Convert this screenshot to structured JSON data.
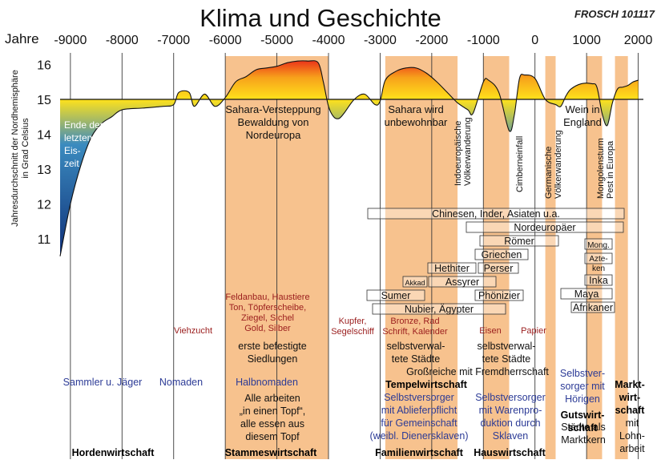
{
  "title": "Klima und Geschichte",
  "signature": "FROSCH 101117",
  "x_axis": {
    "label": "Jahre",
    "ticks": [
      "-9000",
      "-8000",
      "-7000",
      "-6000",
      "-5000",
      "-4000",
      "-3000",
      "-2000",
      "-1000",
      "0",
      "1000",
      "2000"
    ]
  },
  "y_axis": {
    "label_line1": "Jahresdurchschnitt der Nordhemisphäre",
    "label_line2": "in Grad Celsius",
    "ticks": [
      "16",
      "15",
      "14",
      "13",
      "12",
      "11"
    ]
  },
  "colors": {
    "warm_top": "#e8161a",
    "warm_mid": "#f7a21b",
    "warm_low": "#ffe21b",
    "cold_top": "#ffe21b",
    "cold_mid": "#3b8bbf",
    "cold_low": "#0d2c76",
    "period_band": "#f7c28e",
    "brown_text": "#9a1d1d",
    "blue_text": "#2c3b96",
    "gridline": "#3a3a3a"
  },
  "chart_data": {
    "type": "area",
    "xlabel": "Jahre",
    "ylabel": "Jahresdurchschnitt der Nordhemisphäre in Grad Celsius",
    "baseline": 15,
    "xlim": [
      -9200,
      2100
    ],
    "ylim": [
      10,
      16.3
    ],
    "x": [
      -9200,
      -9000,
      -8800,
      -8600,
      -8400,
      -8200,
      -8000,
      -7600,
      -7200,
      -7000,
      -6900,
      -6700,
      -6600,
      -6400,
      -6200,
      -6000,
      -5800,
      -5600,
      -5400,
      -5200,
      -5000,
      -4800,
      -4600,
      -4400,
      -4200,
      -4100,
      -4000,
      -3900,
      -3800,
      -3700,
      -3500,
      -3300,
      -3100,
      -3000,
      -2900,
      -2700,
      -2500,
      -2300,
      -2100,
      -1900,
      -1700,
      -1500,
      -1300,
      -1200,
      -1000,
      -900,
      -700,
      -500,
      -400,
      -300,
      -200,
      0,
      200,
      400,
      500,
      600,
      700,
      900,
      1100,
      1200,
      1300,
      1400,
      1500,
      1600,
      1700,
      1800,
      1900,
      2000
    ],
    "y": [
      10.5,
      12.0,
      13.1,
      13.9,
      14.3,
      14.5,
      14.7,
      14.75,
      14.8,
      14.85,
      15.2,
      15.2,
      14.8,
      15.15,
      14.8,
      15.05,
      15.5,
      15.65,
      15.85,
      15.9,
      15.95,
      16.05,
      16.1,
      16.1,
      16.05,
      15.5,
      14.8,
      14.5,
      14.45,
      14.6,
      15.0,
      15.15,
      14.85,
      14.95,
      15.55,
      15.8,
      15.9,
      15.9,
      15.75,
      15.5,
      15.2,
      14.9,
      14.7,
      14.6,
      15.5,
      15.55,
      15.2,
      14.1,
      14.55,
      15.6,
      15.7,
      15.6,
      15.0,
      14.85,
      14.8,
      15.1,
      15.3,
      15.45,
      15.45,
      15.35,
      14.6,
      14.25,
      14.9,
      15.3,
      15.35,
      15.4,
      15.5,
      15.55
    ]
  },
  "climate_labels": [
    {
      "id": "ende-eiszeit",
      "lines": [
        "Ende der",
        "letzten",
        "Eis-",
        "zeit"
      ]
    },
    {
      "id": "sahara-versteppung",
      "lines": [
        "Sahara-Versteppung",
        "Bewaldung von",
        "Nordeuropa"
      ]
    },
    {
      "id": "sahara-unbewohnbar",
      "lines": [
        "Sahara wird",
        "unbewohnbar"
      ]
    },
    {
      "id": "wein-england",
      "lines": [
        "Wein in",
        "England"
      ]
    }
  ],
  "vertical_events": [
    {
      "id": "indoeuropaeische",
      "lines": [
        "Indoeuropäische",
        "Völkerwanderung"
      ]
    },
    {
      "id": "cimberneinfall",
      "lines": [
        "Cimberneinfall"
      ]
    },
    {
      "id": "germanische",
      "lines": [
        "Germanische",
        "Völkerwanderung"
      ]
    },
    {
      "id": "mongolensturm",
      "lines": [
        "Mongolensturm",
        "Pest in Europa"
      ]
    }
  ],
  "peoples": [
    {
      "id": "chinesen",
      "label": "Chinesen, Inder, Asiaten u.a."
    },
    {
      "id": "nordeuropaer",
      "label": "Nordeuropäer"
    },
    {
      "id": "roemer",
      "label": "Römer"
    },
    {
      "id": "griechen",
      "label": "Griechen"
    },
    {
      "id": "perser",
      "label": "Perser"
    },
    {
      "id": "hethiter",
      "label": "Hethiter"
    },
    {
      "id": "akkad",
      "label": "Akkad"
    },
    {
      "id": "assyrer",
      "label": "Assyrer"
    },
    {
      "id": "sumer",
      "label": "Sumer"
    },
    {
      "id": "phoenizier",
      "label": "Phönizier"
    },
    {
      "id": "nubier",
      "label": "Nubier, Ägypter"
    },
    {
      "id": "mongolen",
      "label": "Mong."
    },
    {
      "id": "azteken",
      "label": "Azte-ken"
    },
    {
      "id": "inka",
      "label": "Inka"
    },
    {
      "id": "maya",
      "label": "Maya"
    },
    {
      "id": "afrikaner",
      "label": "Afrikaner"
    }
  ],
  "technology": [
    {
      "id": "viehzucht",
      "lines": [
        "Viehzucht"
      ]
    },
    {
      "id": "feldanbau",
      "lines": [
        "Feldanbau, Haustiere",
        "Ton, Töpferscheibe,",
        "Ziegel, Sichel",
        "Gold, Silber"
      ]
    },
    {
      "id": "kupfer",
      "lines": [
        "Kupfer,",
        "Segelschiff"
      ]
    },
    {
      "id": "bronze",
      "lines": [
        "Bronze, Rad",
        "Schrift, Kalender"
      ]
    },
    {
      "id": "eisen",
      "lines": [
        "Eisen"
      ]
    },
    {
      "id": "papier",
      "lines": [
        "Papier"
      ]
    }
  ],
  "settlement": [
    {
      "id": "befestigte-siedlungen",
      "lines": [
        "erste befestigte",
        "Siedlungen"
      ]
    },
    {
      "id": "selbstverwaltete-1",
      "lines": [
        "selbstverwal-",
        "tete Städte"
      ]
    },
    {
      "id": "selbstverwaltete-2",
      "lines": [
        "selbstverwal-",
        "tete Städte"
      ]
    },
    {
      "id": "grossreiche",
      "lines": [
        "Großreiche mit Fremdherrschaft"
      ]
    }
  ],
  "ways_of_life": [
    {
      "id": "sammler",
      "lines": [
        "Sammler u. Jäger"
      ]
    },
    {
      "id": "nomaden",
      "lines": [
        "Nomaden"
      ]
    },
    {
      "id": "halbnomaden",
      "lines": [
        "Halbnomaden"
      ]
    },
    {
      "id": "selbstversorger-ablieferpflicht",
      "lines": [
        "Selbstversorger",
        "mit Ablieferpflicht",
        "für Gemeinschaft",
        "(weibl. Dienersklaven)"
      ]
    },
    {
      "id": "selbstversorger-warenproduktion",
      "lines": [
        "Selbstversorger",
        "mit Warenpro-",
        "duktion durch",
        "Sklaven"
      ]
    },
    {
      "id": "selbstversorger-hoerigen",
      "lines": [
        "Selbstver-",
        "sorger mit",
        "Hörigen"
      ]
    }
  ],
  "economy_notes": [
    {
      "id": "alle-arbeiten",
      "lines": [
        "Alle arbeiten",
        "„in einen Topf“,",
        "alle essen aus",
        "diesem Topf"
      ]
    },
    {
      "id": "staedte-marktkern",
      "lines": [
        "Städte als",
        "Marktkern"
      ]
    },
    {
      "id": "mit-lohnarbeit",
      "lines": [
        "mit",
        "Lohn-",
        "arbeit"
      ]
    }
  ],
  "economy_forms": [
    {
      "id": "hordenwirtschaft",
      "lines": [
        "Hordenwirtschaft"
      ]
    },
    {
      "id": "stammeswirtschaft",
      "lines": [
        "Stammeswirtschaft"
      ]
    },
    {
      "id": "tempelwirtschaft",
      "lines": [
        "Tempelwirtschaft"
      ]
    },
    {
      "id": "familienwirtschaft",
      "lines": [
        "Familienwirtschaft"
      ]
    },
    {
      "id": "hauswirtschaft",
      "lines": [
        "Hauswirtschaft"
      ]
    },
    {
      "id": "gutswirtschaft",
      "lines": [
        "Gutswirt-",
        "schaft"
      ]
    },
    {
      "id": "marktwirtschaft",
      "lines": [
        "Markt-",
        "wirt-",
        "schaft"
      ]
    }
  ]
}
